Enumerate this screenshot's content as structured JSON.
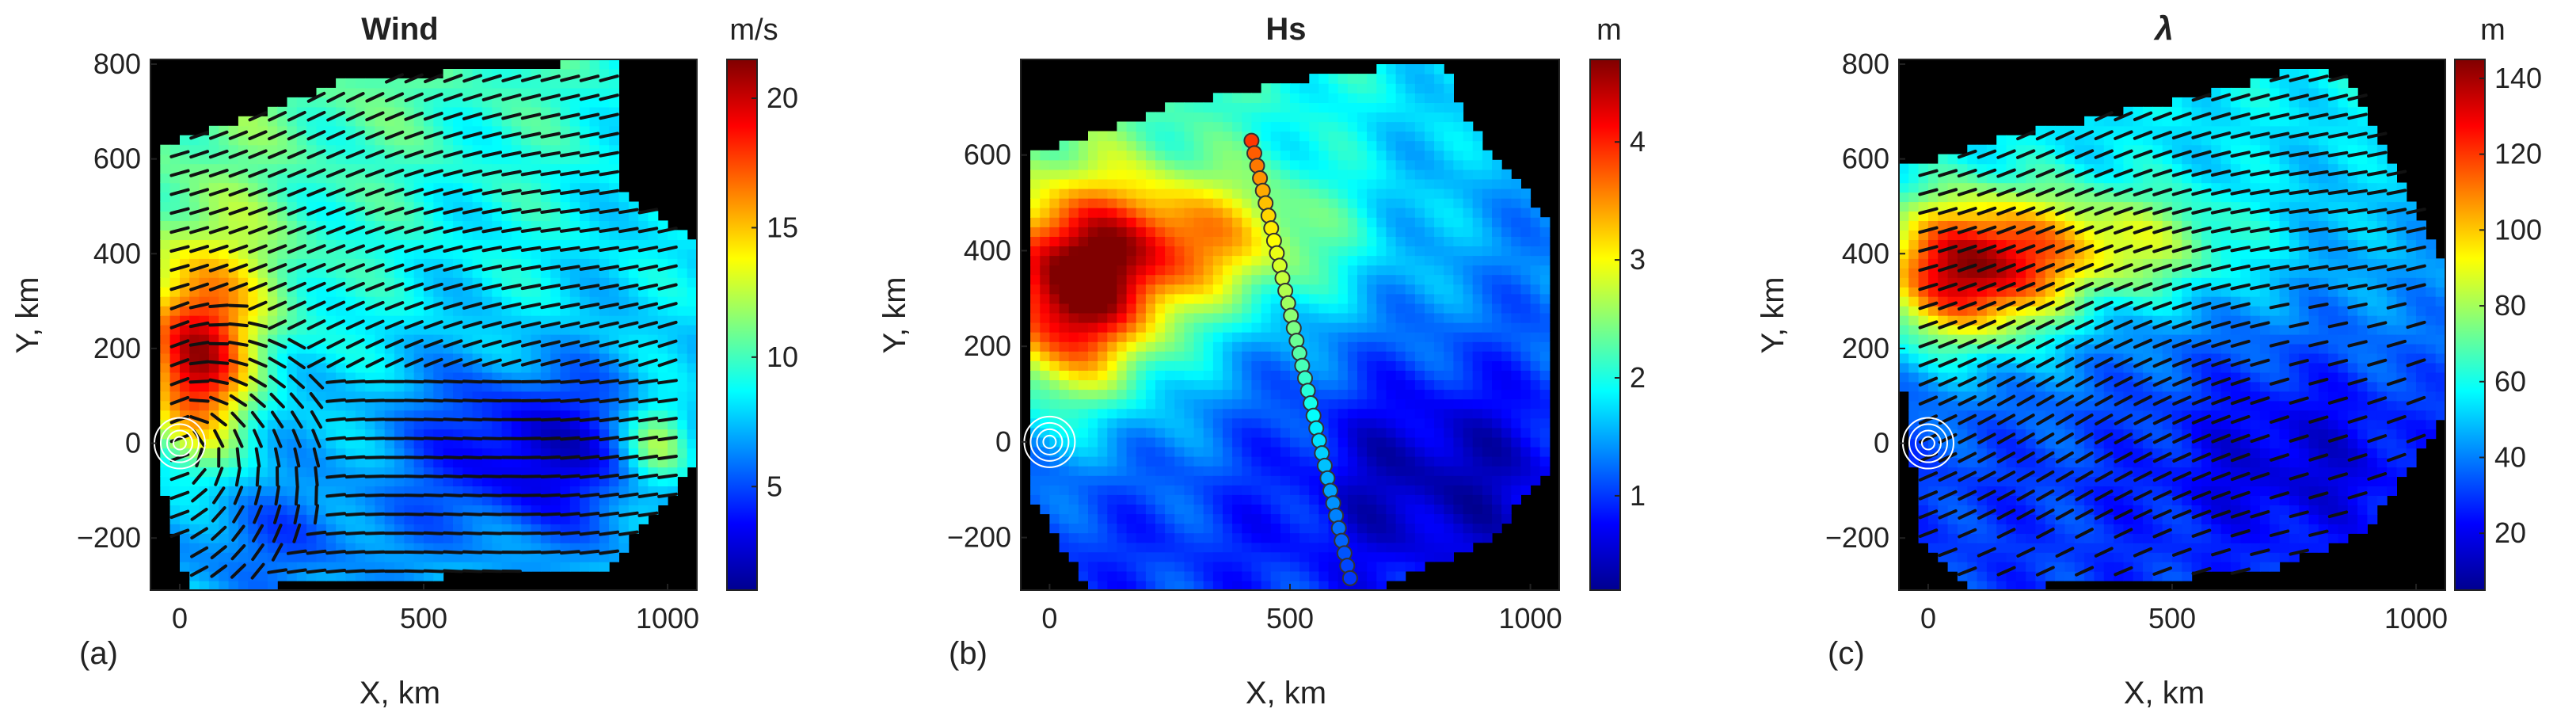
{
  "chart_data": [
    {
      "type": "heatmap",
      "panel_label": "(a)",
      "title": "Wind",
      "title_style": "bold",
      "colorbar_unit": "m/s",
      "colorbar_ticks": [
        5,
        10,
        15,
        20
      ],
      "colorbar_range": [
        1,
        21.5
      ],
      "xlabel": "X, km",
      "ylabel": "Y, km",
      "x_ticks": [
        0,
        500,
        1000
      ],
      "y_ticks": [
        -200,
        0,
        200,
        400,
        600,
        800
      ],
      "xlim": [
        -60,
        1060
      ],
      "ylim": [
        -310,
        810
      ],
      "overlay": "wind direction arrows",
      "storm_center": [
        0,
        0
      ],
      "background_color": "#000000"
    },
    {
      "type": "heatmap",
      "panel_label": "(b)",
      "title": "Hs",
      "title_style": "bold",
      "colorbar_unit": "m",
      "colorbar_ticks": [
        1,
        2,
        3,
        4
      ],
      "colorbar_range": [
        0.2,
        4.7
      ],
      "xlabel": "X, km",
      "ylabel": "Y, km",
      "x_ticks": [
        0,
        500,
        1000
      ],
      "y_ticks": [
        -200,
        0,
        200,
        400,
        600
      ],
      "xlim": [
        -60,
        1060
      ],
      "ylim": [
        -310,
        800
      ],
      "overlay": "sampling track points",
      "track": {
        "start": [
          420,
          630
        ],
        "end": [
          625,
          -285
        ],
        "n_points": 36,
        "values_start": 3.9,
        "values_end": 1.0
      },
      "storm_center": [
        0,
        0
      ],
      "background_color": "#000000"
    },
    {
      "type": "heatmap",
      "panel_label": "(c)",
      "title": "λ",
      "title_style": "italic",
      "colorbar_unit": "m",
      "colorbar_ticks": [
        20,
        40,
        60,
        80,
        100,
        120,
        140
      ],
      "colorbar_range": [
        5,
        145
      ],
      "xlabel": "X, km",
      "ylabel": "Y, km",
      "x_ticks": [
        0,
        500,
        1000
      ],
      "y_ticks": [
        -200,
        0,
        200,
        400,
        600,
        800
      ],
      "xlim": [
        -60,
        1060
      ],
      "ylim": [
        -310,
        810
      ],
      "overlay": "wave direction arrows",
      "storm_center": [
        0,
        0
      ],
      "background_color": "#000000"
    }
  ]
}
